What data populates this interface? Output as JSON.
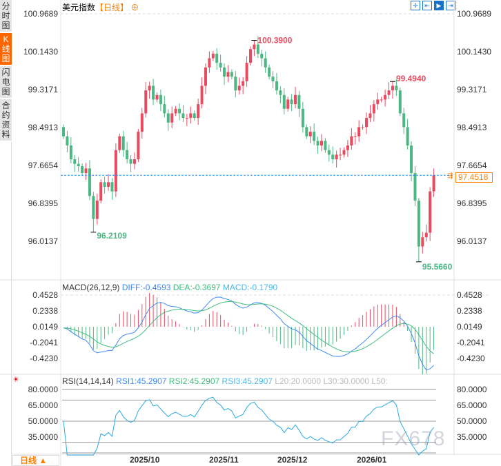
{
  "sidebar": {
    "tabs": [
      {
        "label": "分时图",
        "active": false
      },
      {
        "label": "K线图",
        "active": true
      },
      {
        "label": "闪电图",
        "active": false
      },
      {
        "label": "合约资料",
        "active": false
      }
    ]
  },
  "header": {
    "title": "美元指数",
    "period": "【日线】",
    "add_icon": "crosshair-plus-icon"
  },
  "toolbar": [
    {
      "icon": "crosshair-icon",
      "active": false
    },
    {
      "icon": "zoom-range-icon",
      "active": false
    },
    {
      "icon": "play-forward-icon",
      "active": true
    },
    {
      "icon": "jump-end-icon",
      "active": false
    }
  ],
  "price_axis": [
    "100.9689",
    "100.1430",
    "99.3171",
    "98.4913",
    "97.6654",
    "96.8395",
    "96.0137"
  ],
  "current_price": "97.4518",
  "annotations": {
    "high": "100.3900",
    "second_high": "99.4940",
    "low": "96.2109",
    "second_low": "95.5660"
  },
  "colors": {
    "up": "#e84a5f",
    "down": "#4cb782",
    "diff": "#3d8af7",
    "dea": "#3dbd7d",
    "rsi": "#29a8e0",
    "current": "#ff8000"
  },
  "macd": {
    "label": "MACD(26,12,9)",
    "diff": "DIFF:-0.4593",
    "dea": "DEA:-0.3697",
    "macd": "MACD:-0.1790",
    "axis": [
      "0.4528",
      "0.2338",
      "0.0149",
      "-0.2041",
      "-0.4230"
    ]
  },
  "rsi": {
    "label": "RSI(14,14,14)",
    "rsi1": "RSI1:45.2907",
    "rsi2": "RSI2:45.2907",
    "rsi3": "RSI3:45.2907",
    "l20": "L20:20.0000",
    "l30": "L30:30.0000",
    "l50": "L50:",
    "axis": [
      "80.0000",
      "65.0000",
      "50.0000",
      "35.0000"
    ]
  },
  "dates": [
    "2025/10",
    "2025/11",
    "2025/12",
    "2026/01"
  ],
  "period_button": "日线 ▲",
  "watermark": "FX678",
  "chart_data": {
    "type": "candlestick",
    "closes": [
      98.3,
      98.1,
      97.8,
      97.7,
      97.65,
      97.5,
      97.6,
      97.0,
      96.5,
      96.9,
      97.3,
      97.2,
      97.3,
      97.1,
      98.0,
      98.3,
      98.0,
      97.8,
      97.7,
      97.8,
      98.4,
      98.8,
      99.3,
      99.4,
      99.1,
      99.2,
      99.0,
      98.8,
      98.6,
      98.8,
      98.9,
      98.8,
      98.7,
      98.7,
      98.8,
      98.7,
      99.0,
      99.4,
      99.8,
      100.0,
      100.1,
      99.9,
      99.8,
      99.6,
      99.7,
      99.6,
      99.3,
      99.4,
      99.5,
      99.9,
      100.2,
      100.3,
      100.1,
      100.0,
      99.8,
      99.6,
      99.5,
      99.3,
      99.2,
      98.9,
      99.1,
      99.0,
      99.2,
      98.9,
      98.5,
      98.3,
      98.4,
      98.2,
      98.1,
      98.2,
      98.0,
      97.9,
      97.8,
      97.9,
      97.9,
      98.0,
      98.1,
      98.3,
      98.3,
      98.5,
      98.5,
      98.7,
      98.8,
      99.0,
      99.1,
      99.1,
      99.2,
      99.3,
      99.4,
      99.3,
      98.8,
      98.5,
      98.1,
      97.5,
      96.9,
      95.9,
      96.1,
      96.2,
      97.1,
      97.45
    ],
    "first_open": 98.5,
    "ylim": [
      96.0137,
      100.9689
    ],
    "macd_ylim": [
      -0.423,
      0.4528
    ],
    "rsi_ylim": [
      35,
      80
    ]
  }
}
